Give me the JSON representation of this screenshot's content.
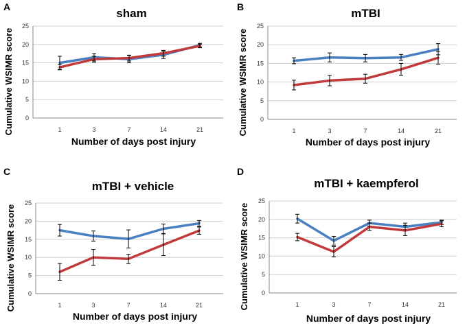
{
  "figure": {
    "series_colors": {
      "blue": "#4a7fc1",
      "red": "#c0393b"
    }
  },
  "chart_data": [
    {
      "type": "line",
      "panel_label": "A",
      "title": "sham",
      "xlabel": "Number of days post injury",
      "ylabel": "Cumulative WSIMR score",
      "categories": [
        "1",
        "3",
        "7",
        "14",
        "21"
      ],
      "yticks": [
        "0",
        "5",
        "10",
        "15",
        "20",
        "25"
      ],
      "ylim": [
        0,
        25
      ],
      "series": [
        {
          "name": "blue",
          "color": "#4a7fc1",
          "values": [
            15,
            16.5,
            16,
            17.2,
            19.8
          ],
          "errors": [
            1.8,
            1.0,
            1.0,
            1.0,
            0.5
          ]
        },
        {
          "name": "red",
          "color": "#c0393b",
          "values": [
            13.8,
            16,
            16.3,
            17.6,
            19.6
          ],
          "errors": [
            0.7,
            0.8,
            0.8,
            0.8,
            0.5
          ]
        }
      ]
    },
    {
      "type": "line",
      "panel_label": "B",
      "title": "mTBI",
      "xlabel": "Number of days post injury",
      "ylabel": "Cumulative WSIMR score",
      "categories": [
        "1",
        "3",
        "7",
        "14",
        "21"
      ],
      "yticks": [
        "0",
        "5",
        "10",
        "15",
        "20",
        "25"
      ],
      "ylim": [
        0,
        25
      ],
      "series": [
        {
          "name": "blue",
          "color": "#4a7fc1",
          "values": [
            15.7,
            16.6,
            16.4,
            16.6,
            18.8
          ],
          "errors": [
            0.8,
            1.2,
            1.0,
            0.8,
            1.5
          ]
        },
        {
          "name": "red",
          "color": "#c0393b",
          "values": [
            9.2,
            10.4,
            10.9,
            13.4,
            16.5
          ],
          "errors": [
            1.3,
            1.4,
            1.2,
            1.6,
            1.7
          ]
        }
      ]
    },
    {
      "type": "line",
      "panel_label": "C",
      "title": "mTBI + vehicle",
      "xlabel": "Number of days post injury",
      "ylabel": "Cumulative WSIMR score",
      "categories": [
        "1",
        "3",
        "7",
        "14",
        "21"
      ],
      "yticks": [
        "0",
        "5",
        "10",
        "15",
        "20",
        "25"
      ],
      "ylim": [
        0,
        25
      ],
      "series": [
        {
          "name": "blue",
          "color": "#4a7fc1",
          "values": [
            17.5,
            15.9,
            15.1,
            17.9,
            19.4
          ],
          "errors": [
            1.6,
            1.4,
            2.5,
            1.3,
            0.8
          ]
        },
        {
          "name": "red",
          "color": "#c0393b",
          "values": [
            6,
            10,
            9.6,
            13.5,
            17.4
          ],
          "errors": [
            2.3,
            2.2,
            1.3,
            3.0,
            1.0
          ]
        }
      ]
    },
    {
      "type": "line",
      "panel_label": "D",
      "title": "mTBI + kaempferol",
      "xlabel": "Number of days post injury",
      "ylabel": "Cumulative WSIMR score",
      "categories": [
        "1",
        "3",
        "7",
        "14",
        "21"
      ],
      "yticks": [
        "0",
        "5",
        "10",
        "15",
        "20",
        "25"
      ],
      "ylim": [
        0,
        25
      ],
      "series": [
        {
          "name": "blue",
          "color": "#4a7fc1",
          "values": [
            20.2,
            14.2,
            19,
            18,
            19.2
          ],
          "errors": [
            1.2,
            1.2,
            0.8,
            1.0,
            0.6
          ]
        },
        {
          "name": "red",
          "color": "#c0393b",
          "values": [
            15.2,
            11.2,
            18,
            17,
            18.8
          ],
          "errors": [
            1.0,
            1.4,
            1.0,
            1.4,
            0.8
          ]
        }
      ]
    }
  ]
}
